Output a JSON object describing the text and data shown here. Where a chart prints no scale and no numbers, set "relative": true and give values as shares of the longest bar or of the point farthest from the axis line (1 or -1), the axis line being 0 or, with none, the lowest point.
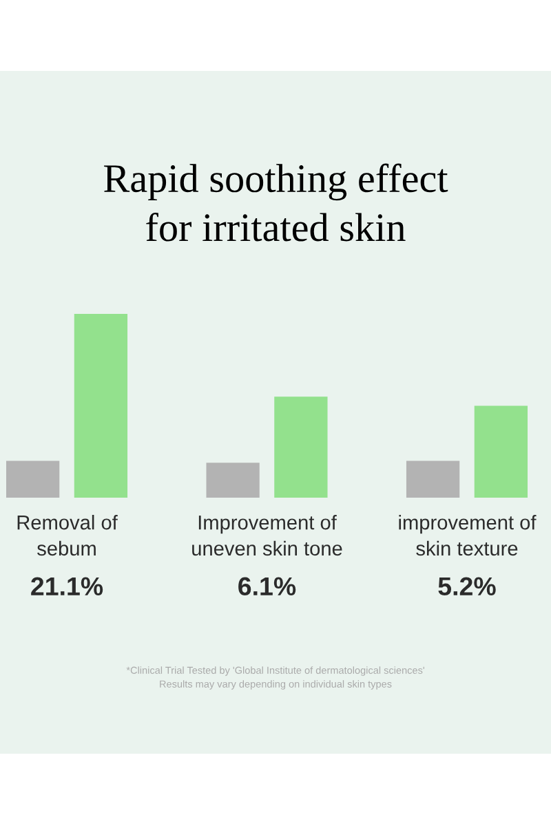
{
  "chart_data": {
    "type": "bar",
    "relative": true,
    "title": "Rapid soothing effect\nfor irritated skin",
    "categories": [
      "Removal of\nsebum",
      "Improvement of\nuneven skin tone",
      "improvement of\nskin texture"
    ],
    "series": [
      {
        "color": "#b3b3b3",
        "values": [
          0.2,
          0.19,
          0.2
        ]
      },
      {
        "color": "#93e18d",
        "values": [
          1,
          0.55,
          0.5
        ]
      }
    ],
    "annotations": [
      "21.1%",
      "6.1%",
      "5.2%",
      "*Clinical Trial Tested by 'Global Institute of dermatological sciences'\nResults may vary depending on individual skin types"
    ],
    "grid": false,
    "legend": false
  }
}
